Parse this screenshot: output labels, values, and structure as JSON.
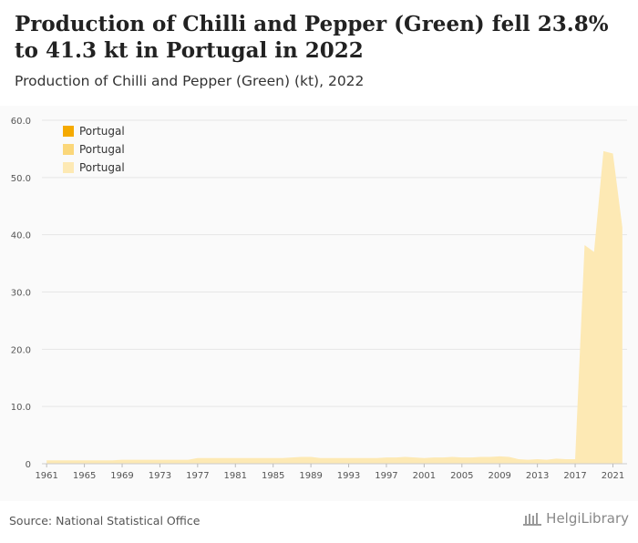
{
  "header": {
    "title": "Production of Chilli and Pepper (Green) fell 23.8% to 41.3 kt in Portugal in 2022",
    "subtitle": "Production of Chilli and Pepper (Green) (kt), 2022"
  },
  "footer": {
    "source": "Source: National Statistical Office",
    "brand": "HelgiLibrary"
  },
  "colors": {
    "area": "#fde9b4",
    "legend": [
      "#f5aa00",
      "#fbd77a",
      "#fde9b4"
    ],
    "grid": "#e6e6e6",
    "axis_text": "#555555"
  },
  "chart_data": {
    "type": "area",
    "title": "",
    "xlabel": "",
    "ylabel": "",
    "ylim": [
      0,
      60
    ],
    "yticks": [
      "0",
      "10.0",
      "20.0",
      "30.0",
      "40.0",
      "50.0",
      "60.0"
    ],
    "xticks": [
      "1961",
      "1965",
      "1969",
      "1973",
      "1977",
      "1981",
      "1985",
      "1989",
      "1993",
      "1997",
      "2001",
      "2005",
      "2009",
      "2013",
      "2017",
      "2021"
    ],
    "grid": true,
    "legend_position": "top-left",
    "series": [
      {
        "name": "Portugal"
      },
      {
        "name": "Portugal"
      },
      {
        "name": "Portugal",
        "x": [
          1961,
          1962,
          1963,
          1964,
          1965,
          1966,
          1967,
          1968,
          1969,
          1970,
          1971,
          1972,
          1973,
          1974,
          1975,
          1976,
          1977,
          1978,
          1979,
          1980,
          1981,
          1982,
          1983,
          1984,
          1985,
          1986,
          1987,
          1988,
          1989,
          1990,
          1991,
          1992,
          1993,
          1994,
          1995,
          1996,
          1997,
          1998,
          1999,
          2000,
          2001,
          2002,
          2003,
          2004,
          2005,
          2006,
          2007,
          2008,
          2009,
          2010,
          2011,
          2012,
          2013,
          2014,
          2015,
          2016,
          2017,
          2018,
          2019,
          2020,
          2021,
          2022
        ],
        "values": [
          0.6,
          0.6,
          0.6,
          0.6,
          0.6,
          0.6,
          0.6,
          0.6,
          0.7,
          0.7,
          0.7,
          0.7,
          0.7,
          0.7,
          0.7,
          0.7,
          1.0,
          1.0,
          1.0,
          1.0,
          1.0,
          1.0,
          1.0,
          1.0,
          1.0,
          1.0,
          1.1,
          1.2,
          1.2,
          1.0,
          1.0,
          1.0,
          1.0,
          1.0,
          1.0,
          1.0,
          1.1,
          1.1,
          1.2,
          1.1,
          1.0,
          1.1,
          1.1,
          1.2,
          1.1,
          1.1,
          1.2,
          1.2,
          1.3,
          1.2,
          0.8,
          0.7,
          0.8,
          0.7,
          0.9,
          0.8,
          0.8,
          38.2,
          37.0,
          54.6,
          54.2,
          41.3
        ]
      }
    ]
  }
}
